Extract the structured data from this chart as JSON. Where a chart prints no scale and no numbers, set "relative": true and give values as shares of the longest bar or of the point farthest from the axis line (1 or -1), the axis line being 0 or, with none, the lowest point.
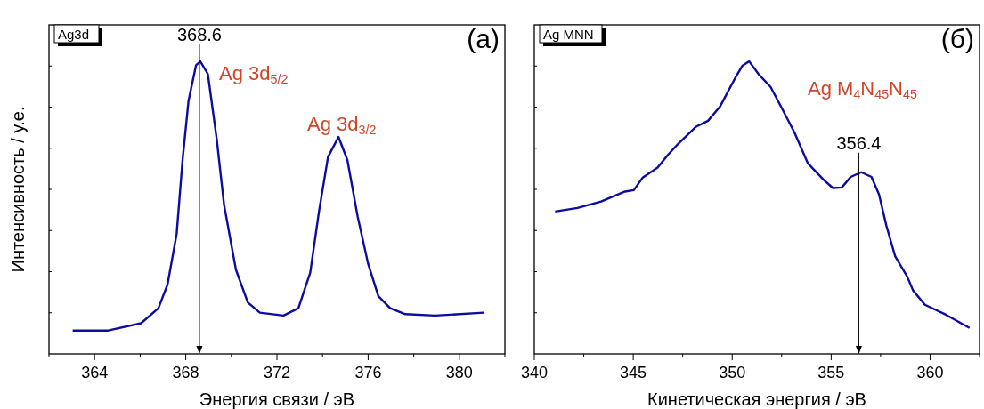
{
  "chart_data": [
    {
      "type": "line",
      "title": "Ag3d",
      "subtitle": "(a)",
      "xlabel": "Энергия связи / эВ",
      "ylabel": "Интенсивность / у.е.",
      "relative": true,
      "tick_labels": "x",
      "xlim": [
        362,
        382
      ],
      "xticks": [
        {
          "value": 362,
          "label": null
        },
        364,
        {
          "value": 366,
          "label": null
        },
        368,
        {
          "value": 370,
          "label": null
        },
        372,
        {
          "value": 374,
          "label": null
        },
        376,
        {
          "value": 378,
          "label": null
        },
        380,
        {
          "value": 382,
          "label": null
        }
      ],
      "series": [
        {
          "color": "#0c0ca0",
          "x": [
            363.04,
            364.6,
            366.04,
            366.8,
            367.2,
            367.6,
            367.86,
            368.12,
            368.45,
            368.64,
            368.97,
            369.36,
            369.68,
            370.2,
            370.72,
            371.25,
            372.29,
            372.94,
            373.46,
            373.85,
            374.24,
            374.7,
            375.09,
            375.54,
            376.0,
            376.45,
            376.97,
            377.63,
            378.93,
            381.07
          ],
          "values": [
            0.08,
            0.08,
            0.105,
            0.156,
            0.237,
            0.41,
            0.663,
            0.865,
            0.987,
            1.0,
            0.957,
            0.733,
            0.51,
            0.288,
            0.176,
            0.141,
            0.131,
            0.156,
            0.278,
            0.49,
            0.673,
            0.742,
            0.663,
            0.47,
            0.308,
            0.197,
            0.156,
            0.136,
            0.131,
            0.141
          ]
        }
      ],
      "ref_lines": [
        {
          "axis": "x",
          "value": 368.6,
          "label": "368.6",
          "color": "#000000"
        }
      ],
      "annotations": [
        "Ag 3d$_{5/2}$",
        "Ag 3d$_{3/2}$"
      ]
    },
    {
      "type": "line",
      "title": "Ag MNN",
      "subtitle": "(б)",
      "xlabel": "Кинетическая энергия / эВ",
      "relative": true,
      "tick_labels": "x",
      "xlim": [
        340,
        362.5
      ],
      "xticks": [
        340,
        {
          "value": 342.5,
          "label": null
        },
        345,
        {
          "value": 347.5,
          "label": null
        },
        350,
        {
          "value": 352.5,
          "label": null
        },
        355,
        {
          "value": 357.5,
          "label": null
        },
        360,
        {
          "value": 362.5,
          "label": null
        }
      ],
      "series": [
        {
          "color": "#0c0ca0",
          "x": [
            341.05,
            342.18,
            343.38,
            344.58,
            345.03,
            345.48,
            346.23,
            346.76,
            347.28,
            348.18,
            348.78,
            349.38,
            350.14,
            350.51,
            350.86,
            351.34,
            351.94,
            352.54,
            353.14,
            353.82,
            354.64,
            355.09,
            355.54,
            355.99,
            356.52,
            357.04,
            357.42,
            357.79,
            358.24,
            358.84,
            359.14,
            359.74,
            360.8,
            361.99
          ],
          "values": [
            0.487,
            0.499,
            0.521,
            0.555,
            0.56,
            0.603,
            0.637,
            0.681,
            0.719,
            0.777,
            0.797,
            0.845,
            0.942,
            0.985,
            1.0,
            0.956,
            0.913,
            0.836,
            0.758,
            0.652,
            0.594,
            0.567,
            0.569,
            0.605,
            0.621,
            0.605,
            0.545,
            0.439,
            0.333,
            0.265,
            0.217,
            0.168,
            0.134,
            0.089
          ]
        }
      ],
      "ref_lines": [
        {
          "axis": "x",
          "value": 356.4,
          "label": "356.4",
          "color": "#000000"
        }
      ],
      "annotations": [
        "Ag M$_{4}$N$_{45}$N$_{45}$"
      ]
    }
  ]
}
